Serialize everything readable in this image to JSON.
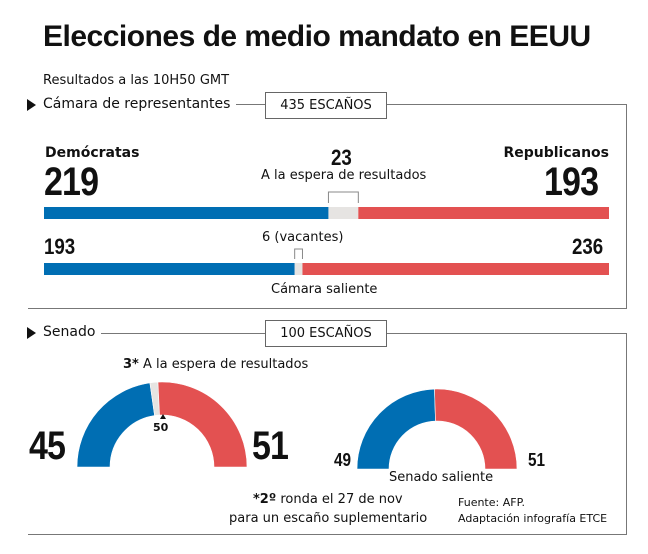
{
  "title": "Elecciones de medio mandato en EEUU",
  "subtitle": "Resultados a las 10H50 GMT",
  "colors": {
    "dem": "#006eb3",
    "rep": "#e35151",
    "pending": "#e6e4e2"
  },
  "house": {
    "label": "Cámara de representantes",
    "seats_label": "435 ESCAÑOS",
    "dem_label": "Demócratas",
    "rep_label": "Republicanos",
    "dem": 219,
    "pending": 23,
    "rep": 193,
    "pending_label": "A la espera de resultados",
    "previous": {
      "dem": 193,
      "vacant": 6,
      "rep": 236,
      "vacant_label": "6 (vacantes)",
      "label": "Cámara saliente"
    }
  },
  "senate": {
    "label": "Senado",
    "seats_label": "100 ESCAÑOS",
    "pending_bold": "3*",
    "pending_label": "A la espera de resultados",
    "dem": 45,
    "rep": 51,
    "pending": 3,
    "majority": "50",
    "previous": {
      "dem": 49,
      "rep": 51,
      "label": "Senado saliente"
    },
    "note_bold": "*2º",
    "note_line1": "ronda el 27 de nov",
    "note_line2": "para un escaño suplementario"
  },
  "source": {
    "line1": "Fuente: AFP.",
    "line2": "Adaptación infografía ETCE"
  },
  "chart_data": [
    {
      "type": "bar",
      "title": "Cámara de representantes",
      "categories": [
        "Demócratas",
        "A la espera de resultados",
        "Republicanos"
      ],
      "values": [
        219,
        23,
        193
      ]
    },
    {
      "type": "bar",
      "title": "Cámara saliente",
      "categories": [
        "Demócratas",
        "vacantes",
        "Republicanos"
      ],
      "values": [
        193,
        6,
        236
      ]
    },
    {
      "type": "pie",
      "title": "Senado",
      "categories": [
        "Demócratas",
        "A la espera de resultados",
        "Republicanos"
      ],
      "values": [
        45,
        3,
        51
      ]
    },
    {
      "type": "pie",
      "title": "Senado saliente",
      "categories": [
        "Demócratas",
        "Republicanos"
      ],
      "values": [
        49,
        51
      ]
    }
  ]
}
